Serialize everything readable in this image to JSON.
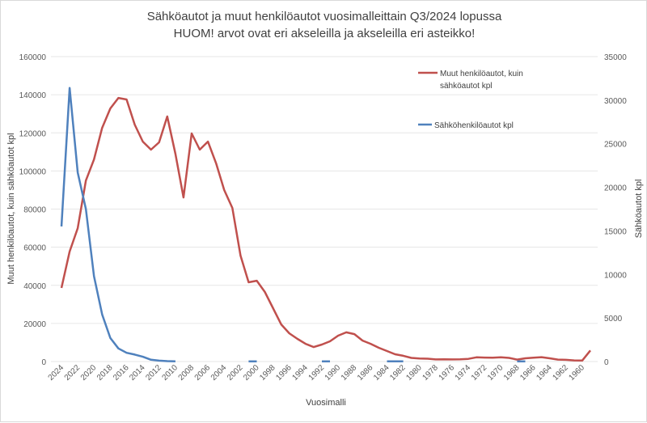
{
  "chart_data": {
    "type": "line",
    "title": "Sähköautot ja muut henkilöautot vuosimalleittain Q3/2024 lopussa",
    "subtitle": "HUOM! arvot ovat eri akseleilla ja akseleilla eri asteikko!",
    "xlabel": "Vuosimalli",
    "ylabel_left": "Muut henkilöautot, kuin sähköautot kpl",
    "ylabel_right": "Sähköautot kpl",
    "ylim_left": [
      0,
      160000
    ],
    "ylim_right": [
      0,
      35000
    ],
    "yticks_left": [
      "0",
      "20000",
      "40000",
      "60000",
      "80000",
      "100000",
      "120000",
      "140000",
      "160000"
    ],
    "yticks_right": [
      "0",
      "5000",
      "10000",
      "15000",
      "20000",
      "25000",
      "30000",
      "35000"
    ],
    "xticks": [
      "2024",
      "2022",
      "2020",
      "2018",
      "2016",
      "2014",
      "2012",
      "2010",
      "2008",
      "2006",
      "2004",
      "2002",
      "2000",
      "1998",
      "1996",
      "1994",
      "1992",
      "1990",
      "1988",
      "1986",
      "1984",
      "1982",
      "1980",
      "1978",
      "1976",
      "1974",
      "1972",
      "1970",
      "1968",
      "1966",
      "1964",
      "1962",
      "1960"
    ],
    "grid": true,
    "legend_placement": "top-right",
    "x": [
      2024,
      2023,
      2022,
      2021,
      2020,
      2019,
      2018,
      2017,
      2016,
      2015,
      2014,
      2013,
      2012,
      2011,
      2010,
      2009,
      2008,
      2007,
      2006,
      2005,
      2004,
      2003,
      2002,
      2001,
      2000,
      1999,
      1998,
      1997,
      1996,
      1995,
      1994,
      1993,
      1992,
      1991,
      1990,
      1989,
      1988,
      1987,
      1986,
      1985,
      1984,
      1983,
      1982,
      1981,
      1980,
      1979,
      1978,
      1977,
      1976,
      1975,
      1974,
      1973,
      1972,
      1971,
      1970,
      1969,
      1968,
      1967,
      1966,
      1965,
      1964,
      1963,
      1962,
      1961,
      1960,
      1959
    ],
    "series": [
      {
        "name": "Muut henkilöautot, kuin sähköautot kpl",
        "axis": "left",
        "color": "#c0504d",
        "values": [
          38600,
          57700,
          70000,
          95000,
          106000,
          122600,
          132800,
          138300,
          137500,
          124300,
          115400,
          111200,
          115000,
          128600,
          109000,
          86100,
          119700,
          111200,
          115400,
          104000,
          90000,
          80600,
          55600,
          41600,
          42400,
          36500,
          28000,
          19500,
          14800,
          11900,
          9300,
          7600,
          8900,
          10600,
          13600,
          15300,
          14400,
          11000,
          9300,
          7200,
          5500,
          3800,
          3000,
          1900,
          1600,
          1500,
          1100,
          1200,
          1100,
          1200,
          1400,
          2200,
          2100,
          2000,
          2200,
          1900,
          1000,
          1700,
          2000,
          2300,
          1700,
          1000,
          900,
          600,
          500,
          5800
        ]
      },
      {
        "name": "Sähköhenkilöautot kpl",
        "axis": "right",
        "color": "#4f81bd",
        "values": [
          15500,
          31400,
          21700,
          17500,
          9800,
          5400,
          2700,
          1500,
          1000,
          800,
          550,
          200,
          100,
          50,
          30,
          null,
          null,
          null,
          null,
          null,
          null,
          null,
          null,
          20,
          20,
          null,
          null,
          null,
          null,
          null,
          null,
          null,
          20,
          20,
          null,
          null,
          null,
          null,
          null,
          null,
          20,
          20,
          20,
          null,
          null,
          null,
          null,
          null,
          null,
          null,
          null,
          null,
          null,
          null,
          null,
          null,
          20,
          20,
          null,
          null,
          null,
          null,
          null,
          null,
          null,
          null
        ]
      }
    ]
  }
}
